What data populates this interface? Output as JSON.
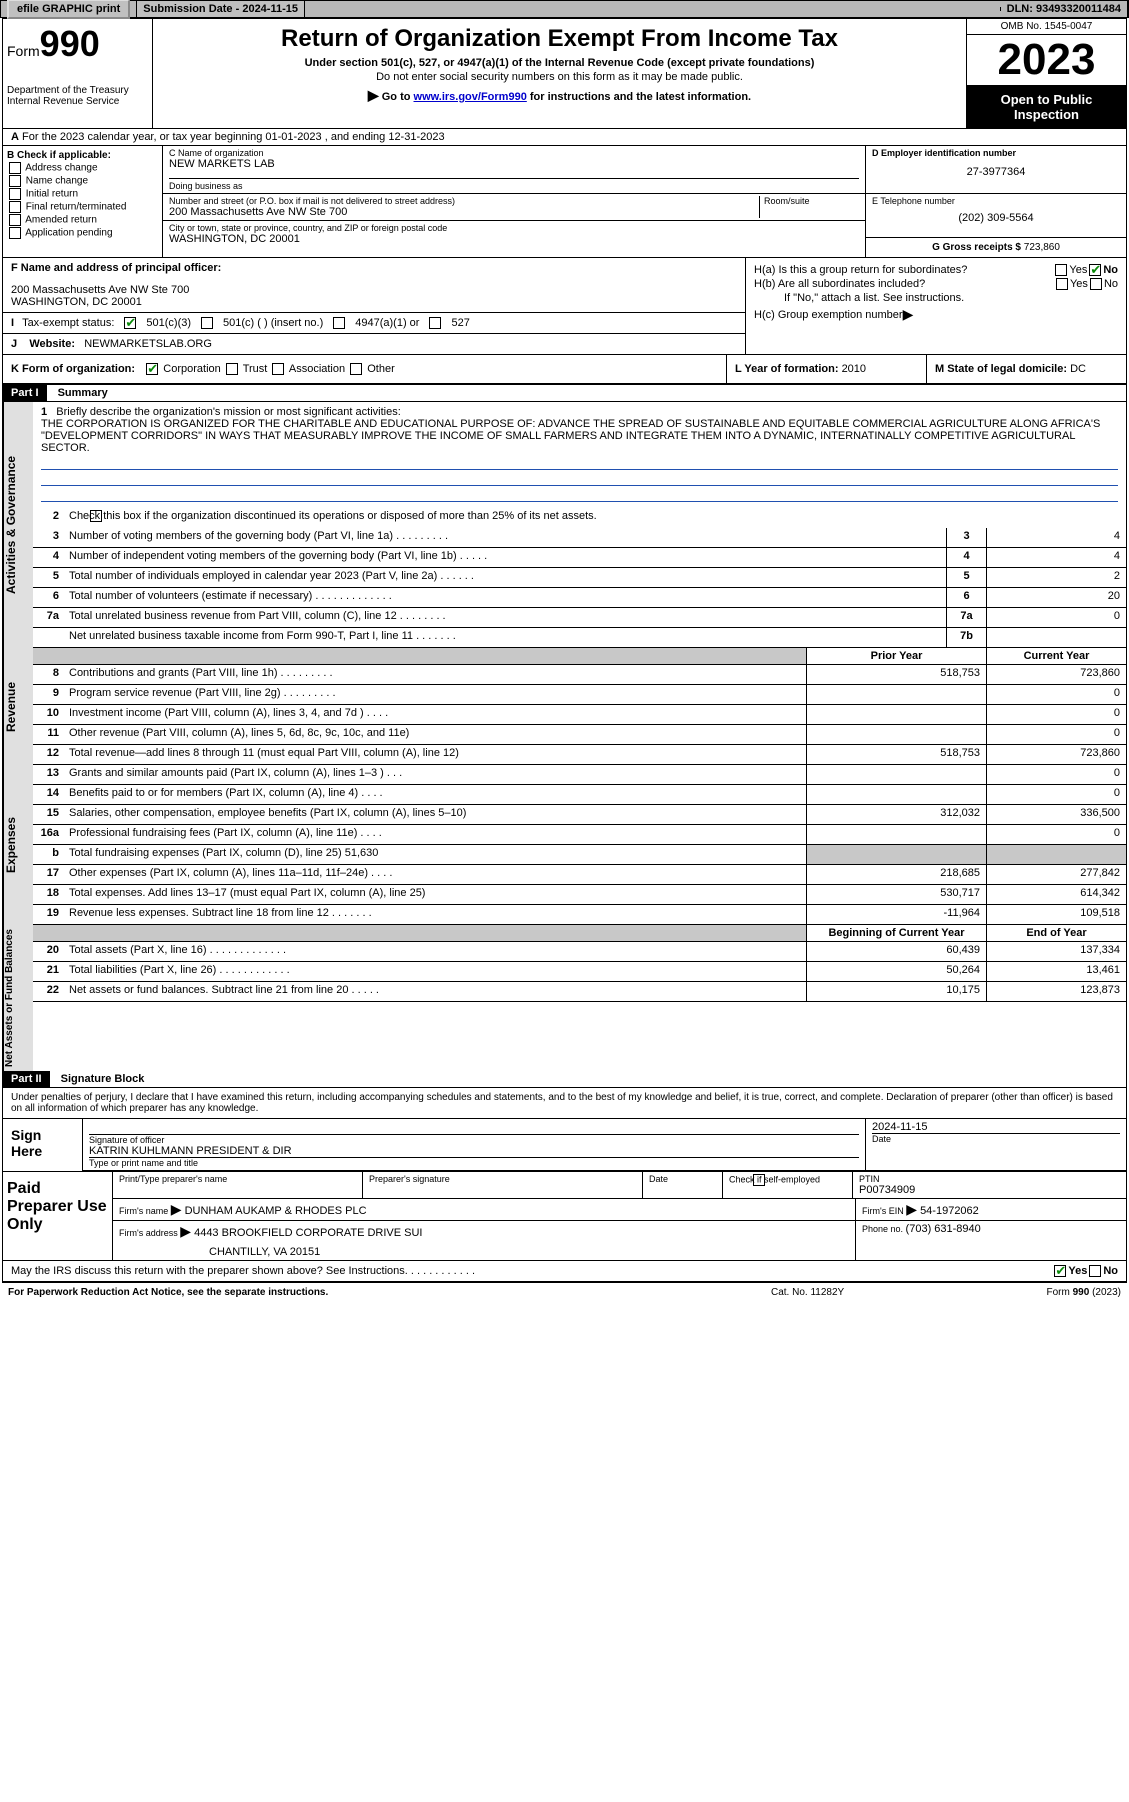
{
  "topbar": {
    "efile": "efile GRAPHIC print",
    "subdate_lbl": "Submission Date - ",
    "subdate": "2024-11-15",
    "dln_lbl": "DLN: ",
    "dln": "93493320011484"
  },
  "header": {
    "form_prefix": "Form",
    "form_num": "990",
    "dept": "Department of the Treasury Internal Revenue Service",
    "title": "Return of Organization Exempt From Income Tax",
    "sub1": "Under section 501(c), 527, or 4947(a)(1) of the Internal Revenue Code (except private foundations)",
    "sub2": "Do not enter social security numbers on this form as it may be made public.",
    "sub3_prefix": "Go to ",
    "sub3_link": "www.irs.gov/Form990",
    "sub3_suffix": " for instructions and the latest information.",
    "omb": "OMB No. 1545-0047",
    "year": "2023",
    "inspect": "Open to Public Inspection"
  },
  "row_a": "For the 2023 calendar year, or tax year beginning 01-01-2023   , and ending 12-31-2023",
  "block_b": {
    "title": "B Check if applicable:",
    "opts": [
      "Address change",
      "Name change",
      "Initial return",
      "Final return/terminated",
      "Amended return",
      "Application pending"
    ]
  },
  "block_c": {
    "name_lbl": "C Name of organization",
    "name": "NEW MARKETS LAB",
    "dba_lbl": "Doing business as",
    "dba": "",
    "street_lbl": "Number and street (or P.O. box if mail is not delivered to street address)",
    "street": "200 Massachusetts Ave NW Ste 700",
    "room_lbl": "Room/suite",
    "city_lbl": "City or town, state or province, country, and ZIP or foreign postal code",
    "city": "WASHINGTON, DC  20001"
  },
  "block_d": {
    "lbl": "D Employer identification number",
    "val": "27-3977364"
  },
  "block_e": {
    "lbl": "E Telephone number",
    "val": "(202) 309-5564"
  },
  "block_g": {
    "lbl": "G Gross receipts $ ",
    "val": "723,860"
  },
  "block_f": {
    "lbl": "F Name and address of principal officer:",
    "addr1": "200 Massachusetts Ave NW Ste 700",
    "addr2": "WASHINGTON, DC  20001"
  },
  "block_h": {
    "ha": "H(a)  Is this a group return for subordinates?",
    "hb": "H(b)  Are all subordinates included?",
    "hb_note": "If \"No,\" attach a list. See instructions.",
    "hc": "H(c)  Group exemption number ",
    "yes": "Yes",
    "no": "No"
  },
  "row_i": {
    "lbl": "Tax-exempt status:",
    "o1": "501(c)(3)",
    "o2": "501(c) (  ) (insert no.)",
    "o3": "4947(a)(1) or",
    "o4": "527"
  },
  "row_j": {
    "lbl": "Website: ",
    "val": "NEWMARKETSLAB.ORG"
  },
  "row_k": {
    "lbl": "K Form of organization:",
    "o1": "Corporation",
    "o2": "Trust",
    "o3": "Association",
    "o4": "Other",
    "l_lbl": "L Year of formation: ",
    "l_val": "2010",
    "m_lbl": "M State of legal domicile: ",
    "m_val": "DC"
  },
  "part1": {
    "hdr": "Part I",
    "title": "Summary"
  },
  "section_labels": {
    "gov": "Activities & Governance",
    "rev": "Revenue",
    "exp": "Expenses",
    "net": "Net Assets or Fund Balances"
  },
  "mission": {
    "lbl": "Briefly describe the organization's mission or most significant activities:",
    "txt": "THE CORPORATION IS ORGANIZED FOR THE CHARITABLE AND EDUCATIONAL PURPOSE OF: ADVANCE THE SPREAD OF SUSTAINABLE AND EQUITABLE COMMERCIAL AGRICULTURE ALONG AFRICA'S \"DEVELOPMENT CORRIDORS\" IN WAYS THAT MEASURABLY IMPROVE THE INCOME OF SMALL FARMERS AND INTEGRATE THEM INTO A DYNAMIC, INTERNATINALLY COMPETITIVE AGRICULTURAL SECTOR."
  },
  "gov_lines": {
    "l2": "Check this box        if the organization discontinued its operations or disposed of more than 25% of its net assets.",
    "l3": {
      "d": "Number of voting members of the governing body (Part VI, line 1a)   .    .    .    .    .    .    .    .    .",
      "b": "3",
      "v": "4"
    },
    "l4": {
      "d": "Number of independent voting members of the governing body (Part VI, line 1b)   .    .    .    .    .",
      "b": "4",
      "v": "4"
    },
    "l5": {
      "d": "Total number of individuals employed in calendar year 2023 (Part V, line 2a)   .    .    .    .    .    .",
      "b": "5",
      "v": "2"
    },
    "l6": {
      "d": "Total number of volunteers (estimate if necessary)   .    .    .    .    .    .    .    .    .    .    .    .    .",
      "b": "6",
      "v": "20"
    },
    "l7a": {
      "d": "Total unrelated business revenue from Part VIII, column (C), line 12   .    .    .    .    .    .    .    .",
      "b": "7a",
      "v": "0"
    },
    "l7b": {
      "d": "Net unrelated business taxable income from Form 990-T, Part I, line 11   .    .    .    .    .    .    .",
      "b": "7b",
      "v": ""
    }
  },
  "col_hdrs": {
    "py": "Prior Year",
    "cy": "Current Year"
  },
  "rev_lines": [
    {
      "n": "8",
      "d": "Contributions and grants (Part VIII, line 1h)   .    .    .    .    .    .    .    .    .",
      "py": "518,753",
      "cy": "723,860"
    },
    {
      "n": "9",
      "d": "Program service revenue (Part VIII, line 2g)   .    .    .    .    .    .    .    .    .",
      "py": "",
      "cy": "0"
    },
    {
      "n": "10",
      "d": "Investment income (Part VIII, column (A), lines 3, 4, and 7d )   .    .    .    .",
      "py": "",
      "cy": "0"
    },
    {
      "n": "11",
      "d": "Other revenue (Part VIII, column (A), lines 5, 6d, 8c, 9c, 10c, and 11e)",
      "py": "",
      "cy": "0"
    },
    {
      "n": "12",
      "d": "Total revenue—add lines 8 through 11 (must equal Part VIII, column (A), line 12)",
      "py": "518,753",
      "cy": "723,860"
    }
  ],
  "exp_lines": [
    {
      "n": "13",
      "d": "Grants and similar amounts paid (Part IX, column (A), lines 1–3 )   .    .    .",
      "py": "",
      "cy": "0"
    },
    {
      "n": "14",
      "d": "Benefits paid to or for members (Part IX, column (A), line 4)   .    .    .    .",
      "py": "",
      "cy": "0"
    },
    {
      "n": "15",
      "d": "Salaries, other compensation, employee benefits (Part IX, column (A), lines 5–10)",
      "py": "312,032",
      "cy": "336,500"
    },
    {
      "n": "16a",
      "d": "Professional fundraising fees (Part IX, column (A), line 11e)   .    .    .    .",
      "py": "",
      "cy": "0"
    },
    {
      "n": "b",
      "d": "Total fundraising expenses (Part IX, column (D), line 25) 51,630",
      "py": "__GRAY__",
      "cy": "__GRAY__"
    },
    {
      "n": "17",
      "d": "Other expenses (Part IX, column (A), lines 11a–11d, 11f–24e)   .    .    .    .",
      "py": "218,685",
      "cy": "277,842"
    },
    {
      "n": "18",
      "d": "Total expenses. Add lines 13–17 (must equal Part IX, column (A), line 25)",
      "py": "530,717",
      "cy": "614,342"
    },
    {
      "n": "19",
      "d": "Revenue less expenses. Subtract line 18 from line 12   .    .    .    .    .    .    .",
      "py": "-11,964",
      "cy": "109,518"
    }
  ],
  "net_hdrs": {
    "b": "Beginning of Current Year",
    "e": "End of Year"
  },
  "net_lines": [
    {
      "n": "20",
      "d": "Total assets (Part X, line 16)   .    .    .    .    .    .    .    .    .    .    .    .    .",
      "py": "60,439",
      "cy": "137,334"
    },
    {
      "n": "21",
      "d": "Total liabilities (Part X, line 26)   .    .    .    .    .    .    .    .    .    .    .    .",
      "py": "50,264",
      "cy": "13,461"
    },
    {
      "n": "22",
      "d": "Net assets or fund balances. Subtract line 21 from line 20   .    .    .    .    .",
      "py": "10,175",
      "cy": "123,873"
    }
  ],
  "part2": {
    "hdr": "Part II",
    "title": "Signature Block"
  },
  "sig": {
    "decl": "Under penalties of perjury, I declare that I have examined this return, including accompanying schedules and statements, and to the best of my knowledge and belief, it is true, correct, and complete. Declaration of preparer (other than officer) is based on all information of which preparer has any knowledge.",
    "sign_here": "Sign Here",
    "sig_lbl": "Signature of officer",
    "name": "KATRIN KUHLMANN  PRESIDENT & DIR",
    "name_lbl": "Type or print name and title",
    "date_lbl": "Date",
    "date": "2024-11-15"
  },
  "paid": {
    "title": "Paid Preparer Use Only",
    "prep_lbl": "Print/Type preparer's name",
    "prep_sig_lbl": "Preparer's signature",
    "date_lbl": "Date",
    "self_lbl": "Check          if self-employed",
    "ptin_lbl": "PTIN",
    "ptin": "P00734909",
    "firm_lbl": "Firm's name     ",
    "firm": "DUNHAM AUKAMP & RHODES PLC",
    "ein_lbl": "Firm's EIN  ",
    "ein": "54-1972062",
    "addr_lbl": "Firm's address ",
    "addr1": "4443 BROOKFIELD CORPORATE DRIVE SUI",
    "addr2": "CHANTILLY, VA  20151",
    "phone_lbl": "Phone no. ",
    "phone": "(703) 631-8940"
  },
  "discuss": {
    "txt": "May the IRS discuss this return with the preparer shown above? See Instructions.   .    .    .    .    .    .    .    .    .    .    .",
    "yes": "Yes",
    "no": "No"
  },
  "footer": {
    "left": "For Paperwork Reduction Act Notice, see the separate instructions.",
    "mid": "Cat. No. 11282Y",
    "right": "Form 990 (2023)"
  }
}
